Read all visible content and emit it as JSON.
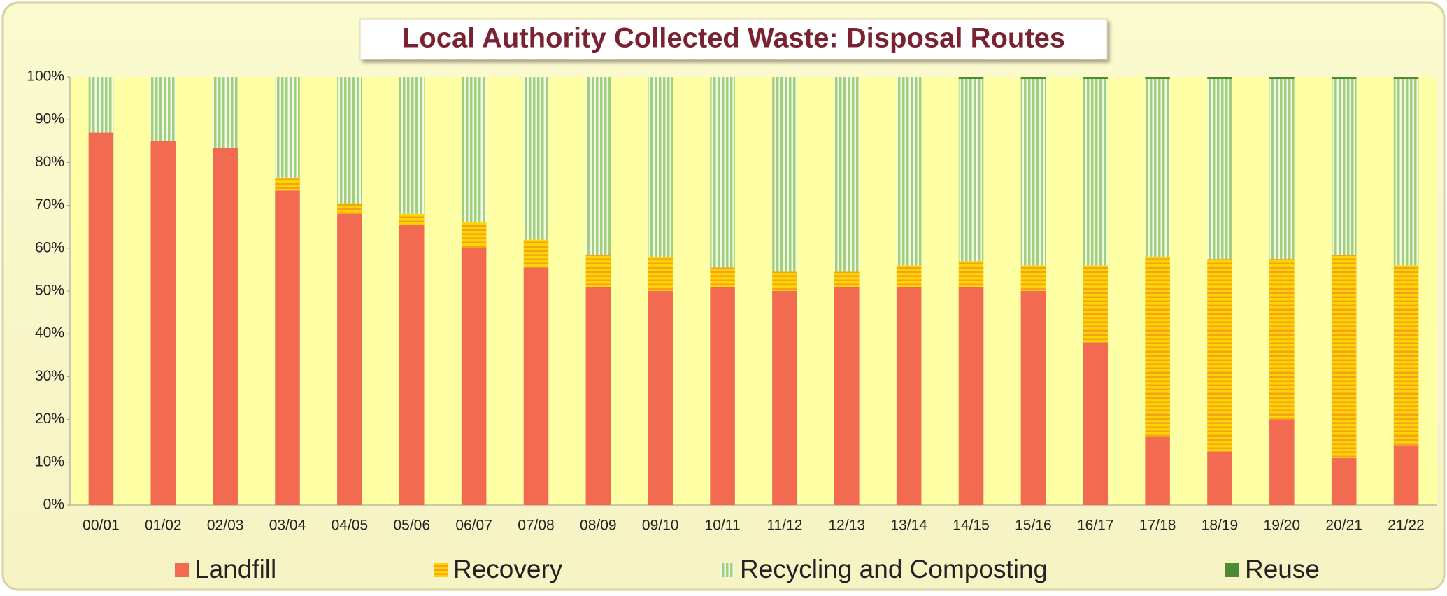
{
  "chart_data": {
    "type": "stacked-bar",
    "title": "Local Authority Collected Waste: Disposal Routes",
    "categories": [
      "00/01",
      "01/02",
      "02/03",
      "03/04",
      "04/05",
      "05/06",
      "06/07",
      "07/08",
      "08/09",
      "09/10",
      "10/11",
      "11/12",
      "12/13",
      "13/14",
      "14/15",
      "15/16",
      "16/17",
      "17/18",
      "18/19",
      "19/20",
      "20/21",
      "21/22"
    ],
    "series": [
      {
        "name": "Landfill",
        "color": "#f26b50",
        "pattern": "solid",
        "values": [
          87,
          85,
          83.5,
          73.5,
          68,
          65.5,
          60,
          55.5,
          51,
          50,
          51,
          50,
          51,
          51,
          51,
          50,
          38,
          16,
          12.5,
          20,
          11,
          14
        ]
      },
      {
        "name": "Recovery",
        "color": "#ffd400",
        "pattern": "horizontal",
        "values": [
          0,
          0,
          0,
          3,
          2.5,
          2.5,
          6,
          6.5,
          7.5,
          8,
          4.5,
          4.5,
          3.5,
          5,
          6,
          6,
          18,
          42,
          45,
          37.5,
          47.5,
          42
        ]
      },
      {
        "name": "Recycling and Composting",
        "color": "#9fcf7f",
        "pattern": "vertical",
        "values": [
          13,
          15,
          16.5,
          23.5,
          29.5,
          32,
          34,
          38,
          41.5,
          42,
          44.5,
          45.5,
          45.5,
          44,
          42.5,
          43.5,
          43.5,
          41.5,
          42,
          42,
          41,
          43.5
        ]
      },
      {
        "name": "Reuse",
        "color": "#4f8a34",
        "pattern": "solid",
        "values": [
          0,
          0,
          0,
          0,
          0,
          0,
          0,
          0,
          0,
          0,
          0,
          0,
          0,
          0,
          0.5,
          0.5,
          0.5,
          0.5,
          0.5,
          0.5,
          0.5,
          0.5
        ]
      }
    ],
    "ylim": [
      0,
      100
    ],
    "yticks": [
      {
        "value": 0,
        "label": "0%"
      },
      {
        "value": 10,
        "label": "10%"
      },
      {
        "value": 20,
        "label": "20%"
      },
      {
        "value": 30,
        "label": "30%"
      },
      {
        "value": 40,
        "label": "40%"
      },
      {
        "value": 50,
        "label": "50%"
      },
      {
        "value": 60,
        "label": "60%"
      },
      {
        "value": 70,
        "label": "70%"
      },
      {
        "value": 80,
        "label": "80%"
      },
      {
        "value": 90,
        "label": "90%"
      },
      {
        "value": 100,
        "label": "100%"
      }
    ],
    "legend": "bottom"
  }
}
